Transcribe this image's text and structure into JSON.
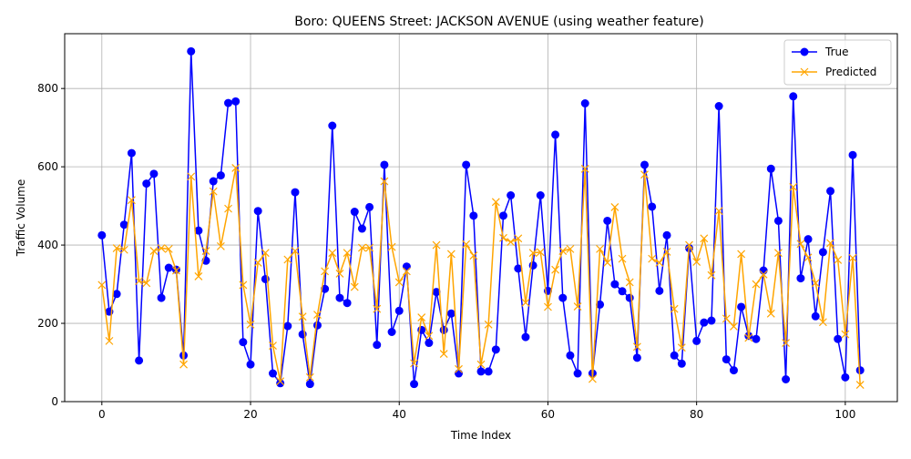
{
  "chart_data": {
    "type": "line",
    "title": "Boro: QUEENS Street: JACKSON AVENUE (using weather feature)",
    "xlabel": "Time Index",
    "ylabel": "Traffic Volume",
    "xlim": [
      -5,
      107
    ],
    "ylim": [
      0,
      940
    ],
    "xticks": [
      0,
      20,
      40,
      60,
      80,
      100
    ],
    "yticks": [
      0,
      200,
      400,
      600,
      800
    ],
    "grid": true,
    "legend_position": "top-right",
    "x": [
      0,
      1,
      2,
      3,
      4,
      5,
      6,
      7,
      8,
      9,
      10,
      11,
      12,
      13,
      14,
      15,
      16,
      17,
      18,
      19,
      20,
      21,
      22,
      23,
      24,
      25,
      26,
      27,
      28,
      29,
      30,
      31,
      32,
      33,
      34,
      35,
      36,
      37,
      38,
      39,
      40,
      41,
      42,
      43,
      44,
      45,
      46,
      47,
      48,
      49,
      50,
      51,
      52,
      53,
      54,
      55,
      56,
      57,
      58,
      59,
      60,
      61,
      62,
      63,
      64,
      65,
      66,
      67,
      68,
      69,
      70,
      71,
      72,
      73,
      74,
      75,
      76,
      77,
      78,
      79,
      80,
      81,
      82,
      83,
      84,
      85,
      86,
      87,
      88,
      89,
      90,
      91,
      92,
      93,
      94,
      95,
      96,
      97,
      98,
      99,
      100,
      101,
      102
    ],
    "series": [
      {
        "name": "True",
        "color": "#0000ff",
        "marker": "circle",
        "values": [
          425,
          230,
          275,
          452,
          635,
          105,
          557,
          582,
          265,
          342,
          337,
          118,
          895,
          437,
          360,
          563,
          578,
          763,
          767,
          152,
          95,
          487,
          313,
          72,
          47,
          193,
          535,
          172,
          45,
          195,
          288,
          705,
          265,
          252,
          485,
          442,
          497,
          145,
          605,
          178,
          232,
          345,
          45,
          183,
          150,
          280,
          183,
          225,
          72,
          605,
          475,
          77,
          77,
          133,
          475,
          527,
          340,
          165,
          348,
          527,
          283,
          682,
          265,
          118,
          72,
          762,
          72,
          248,
          462,
          300,
          282,
          265,
          112,
          605,
          498,
          283,
          425,
          118,
          97,
          392,
          155,
          202,
          207,
          755,
          108,
          80,
          242,
          168,
          160,
          335,
          595,
          462,
          57,
          780,
          315,
          415,
          218,
          382,
          538,
          160,
          62,
          630,
          80
        ]
      },
      {
        "name": "Predicted",
        "color": "#ffa500",
        "marker": "x",
        "values": [
          298,
          155,
          392,
          388,
          515,
          308,
          303,
          385,
          392,
          390,
          335,
          95,
          575,
          320,
          385,
          537,
          397,
          493,
          597,
          298,
          197,
          355,
          380,
          143,
          52,
          363,
          385,
          217,
          62,
          222,
          333,
          380,
          327,
          380,
          293,
          393,
          393,
          237,
          563,
          395,
          305,
          333,
          98,
          215,
          168,
          400,
          122,
          377,
          83,
          402,
          373,
          95,
          197,
          510,
          418,
          408,
          417,
          253,
          380,
          382,
          242,
          337,
          385,
          390,
          243,
          595,
          58,
          390,
          355,
          497,
          365,
          305,
          140,
          580,
          365,
          355,
          383,
          237,
          138,
          400,
          357,
          417,
          323,
          487,
          212,
          192,
          377,
          163,
          300,
          325,
          225,
          380,
          150,
          548,
          403,
          368,
          303,
          203,
          405,
          362,
          172,
          367,
          43
        ]
      }
    ]
  }
}
